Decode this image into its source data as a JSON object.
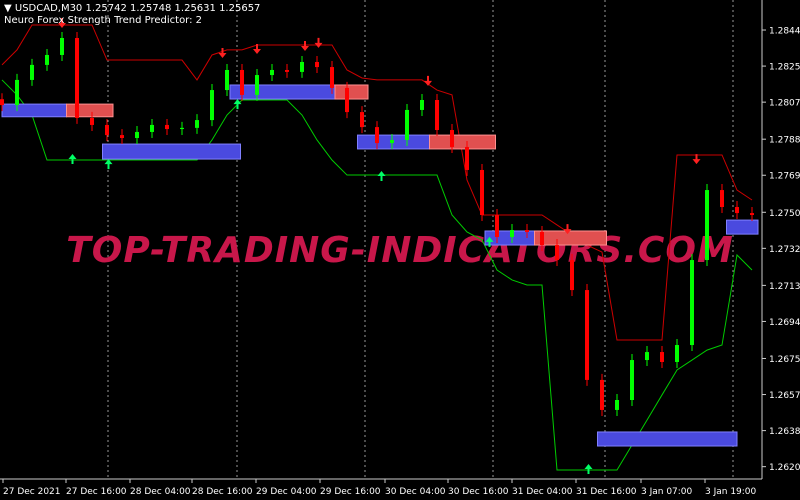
{
  "header": {
    "symbol_line": "USDCAD,M30  1.25742 1.25748 1.25631 1.25657",
    "indicator_name": "Neuro Forex Strength Trend Predictor: 2"
  },
  "watermark": "TOP-TRADING-INDICATORS.COM",
  "colors": {
    "background": "#000000",
    "bull": "#00ff00",
    "bear": "#ff0000",
    "upper_band": "#cc0000",
    "lower_band": "#00cc00",
    "box_blue": "#4a4adf",
    "box_red": "#e05050",
    "watermark": "#c8174a",
    "up_arrow": "#00ff66",
    "down_arrow": "#ff2020",
    "dot": "#2040ff"
  },
  "chart_data": {
    "type": "candlestick",
    "symbol": "USDCAD",
    "timeframe": "M30",
    "ylim": [
      1.261,
      1.2859
    ],
    "y_ticks": [
      "1.28440",
      "1.28255",
      "1.28070",
      "1.27880",
      "1.27695",
      "1.27505",
      "1.27320",
      "1.27130",
      "1.26945",
      "1.26755",
      "1.26570",
      "1.26385",
      "1.26200"
    ],
    "x_ticks": [
      "27 Dec 2021",
      "27 Dec 16:00",
      "28 Dec 04:00",
      "28 Dec 16:00",
      "29 Dec 04:00",
      "29 Dec 16:00",
      "30 Dec 04:00",
      "30 Dec 16:00",
      "31 Dec 04:00",
      "31 Dec 16:00",
      "3 Jan 07:00",
      "3 Jan 19:00"
    ],
    "grid": "vertical dotted at day separators",
    "close": [
      1.28055,
      1.28184,
      1.28261,
      1.28312,
      1.28399,
      1.27989,
      1.27953,
      1.27901,
      1.27886,
      1.27917,
      1.27953,
      1.27932,
      1.27938,
      1.27978,
      1.28132,
      1.28235,
      1.28107,
      1.28209,
      1.28235,
      1.28225,
      1.28276,
      1.2825,
      1.28143,
      1.28019,
      1.27942,
      1.2786,
      1.27876,
      1.2803,
      1.28081,
      1.27927,
      1.2784,
      1.27722,
      1.27491,
      1.27378,
      1.27414,
      1.27404,
      1.27337,
      1.2726,
      1.27106,
      1.26645,
      1.26491,
      1.26542,
      1.26747,
      1.26788,
      1.26737,
      1.26824,
      1.2726,
      1.27619,
      1.27532,
      1.27501,
      1.27491
    ],
    "upper_band": [
      1.28261,
      1.28338,
      1.28466,
      1.28466,
      1.28466,
      1.28466,
      1.28466,
      1.28286,
      1.28286,
      1.28286,
      1.28286,
      1.28286,
      1.28286,
      1.28184,
      1.28312,
      1.28338,
      1.28338,
      1.28363,
      1.28363,
      1.28363,
      1.28363,
      1.28363,
      1.28363,
      1.28235,
      1.28194,
      1.28184,
      1.28184,
      1.28184,
      1.28184,
      1.28132,
      1.28107,
      1.27671,
      1.27491,
      1.27491,
      1.27491,
      1.27491,
      1.27491,
      1.2744,
      1.27389,
      1.27337,
      1.27301,
      1.2685,
      1.2685,
      1.2685,
      1.2685,
      1.27799,
      1.27799,
      1.27799,
      1.27799,
      1.27619,
      1.27568
    ],
    "lower_band": [
      1.28184,
      1.28107,
      1.28004,
      1.27773,
      1.27773,
      1.27773,
      1.27773,
      1.27773,
      1.27773,
      1.27773,
      1.27773,
      1.27773,
      1.27773,
      1.27773,
      1.27876,
      1.28004,
      1.28081,
      1.28081,
      1.28081,
      1.28081,
      1.28004,
      1.27876,
      1.27773,
      1.27696,
      1.27696,
      1.27696,
      1.27696,
      1.27696,
      1.27696,
      1.27696,
      1.27491,
      1.27404,
      1.27363,
      1.27209,
      1.27158,
      1.27132,
      1.27132,
      1.26183,
      1.26183,
      1.26183,
      1.26183,
      1.26183,
      1.26311,
      1.26439,
      1.26568,
      1.26696,
      1.26747,
      1.26798,
      1.26824,
      1.27286,
      1.27209
    ],
    "boxes": [
      {
        "start": 0,
        "split": 4.3,
        "end": 7.4,
        "top": 1.2806,
        "bottom": 1.27995
      },
      {
        "start": 6.7,
        "split": 15.9,
        "end": 15.9,
        "top": 1.27855,
        "bottom": 1.27778
      },
      {
        "start": 15.2,
        "split": 22.2,
        "end": 24.4,
        "top": 1.28158,
        "bottom": 1.28086
      },
      {
        "start": 23.7,
        "split": 28.5,
        "end": 32.9,
        "top": 1.27901,
        "bottom": 1.2783
      },
      {
        "start": 32.2,
        "split": 35.5,
        "end": 40.3,
        "top": 1.27409,
        "bottom": 1.27337
      },
      {
        "start": 39.7,
        "split": 49,
        "end": 49,
        "top": 1.26378,
        "bottom": 1.26306
      },
      {
        "start": 48.3,
        "split": 50.4,
        "end": 50.4,
        "top": 1.27465,
        "bottom": 1.27393
      }
    ],
    "buy_arrows": [
      {
        "i": 4.7,
        "p": 1.27773
      },
      {
        "i": 7.1,
        "p": 1.27747
      },
      {
        "i": 15.7,
        "p": 1.28055
      },
      {
        "i": 25.3,
        "p": 1.27686
      },
      {
        "i": 32.5,
        "p": 1.27348
      },
      {
        "i": 39.1,
        "p": 1.26183
      }
    ],
    "sell_arrows": [
      {
        "i": 4,
        "p": 1.28481
      },
      {
        "i": 14.7,
        "p": 1.28327
      },
      {
        "i": 17,
        "p": 1.28348
      },
      {
        "i": 20.2,
        "p": 1.28363
      },
      {
        "i": 21.1,
        "p": 1.28379
      },
      {
        "i": 28.4,
        "p": 1.28184
      },
      {
        "i": 37.7,
        "p": 1.27424
      },
      {
        "i": 46.3,
        "p": 1.27783
      }
    ]
  }
}
